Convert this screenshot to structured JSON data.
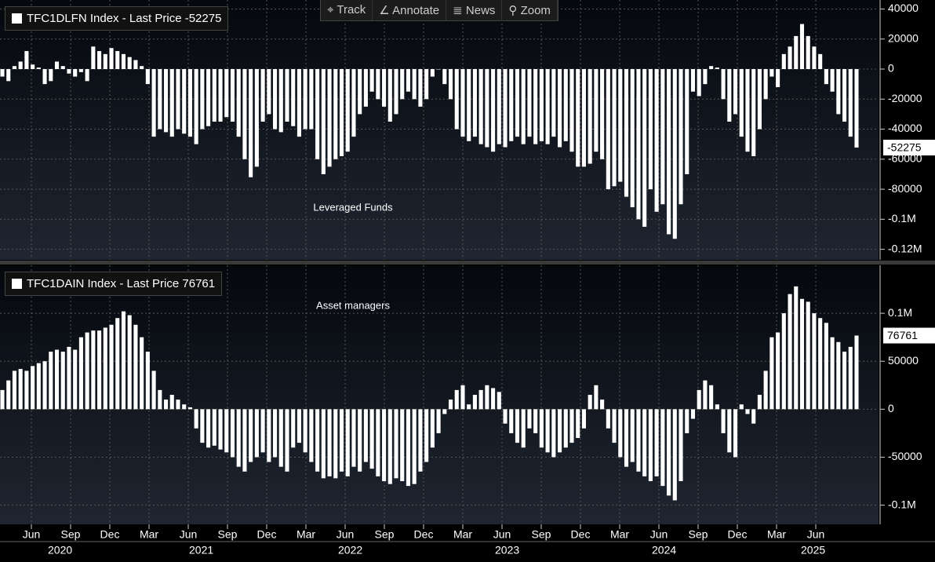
{
  "toolbar": [
    "Track",
    "Annotate",
    "News",
    "Zoom"
  ],
  "chart_data": [
    {
      "type": "bar",
      "title": "TFC1DLFN Index - Last Price -52275",
      "annotation": "Leveraged Funds",
      "color": "#ffffff",
      "ylim": [
        -127000,
        46000
      ],
      "yticks": [
        40000,
        20000,
        0,
        -20000,
        -40000,
        -60000,
        -80000,
        {
          "value": -100000,
          "label": "-0.1M"
        },
        {
          "value": -120000,
          "label": "-0.12M"
        }
      ],
      "grid": true,
      "values": [
        -5000,
        -8000,
        2000,
        5000,
        12000,
        3000,
        1000,
        -10000,
        -8000,
        5000,
        2000,
        -3000,
        -5000,
        -2000,
        -8000,
        15000,
        12000,
        10000,
        14000,
        12000,
        10000,
        8000,
        6000,
        2000,
        -10000,
        -45000,
        -40000,
        -42000,
        -45000,
        -40000,
        -43000,
        -45000,
        -50000,
        -40000,
        -38000,
        -35000,
        -35000,
        -32000,
        -35000,
        -45000,
        -60000,
        -72000,
        -65000,
        -35000,
        -30000,
        -40000,
        -42000,
        -35000,
        -38000,
        -45000,
        -40000,
        -40000,
        -60000,
        -70000,
        -65000,
        -60000,
        -58000,
        -55000,
        -45000,
        -30000,
        -25000,
        -15000,
        -20000,
        -25000,
        -35000,
        -30000,
        -20000,
        -15000,
        -20000,
        -25000,
        -20000,
        -5000,
        0,
        -10000,
        -20000,
        -40000,
        -45000,
        -48000,
        -45000,
        -50000,
        -52000,
        -55000,
        -50000,
        -52000,
        -48000,
        -45000,
        -50000,
        -45000,
        -50000,
        -48000,
        -50000,
        -45000,
        -52000,
        -48000,
        -55000,
        -65000,
        -65000,
        -63000,
        -55000,
        -60000,
        -80000,
        -78000,
        -75000,
        -85000,
        -92000,
        -100000,
        -105000,
        -80000,
        -95000,
        -90000,
        -110000,
        -113000,
        -90000,
        -70000,
        -15000,
        -18000,
        -10000,
        2000,
        1000,
        -20000,
        -35000,
        -30000,
        -45000,
        -55000,
        -58000,
        -40000,
        -20000,
        -5000,
        -12000,
        10000,
        15000,
        22000,
        30000,
        22000,
        15000,
        10000,
        -10000,
        -15000,
        -30000,
        -35000,
        -45000,
        -52275
      ]
    },
    {
      "type": "bar",
      "title": "TFC1DAIN Index - Last Price 76761",
      "annotation": "Asset managers",
      "color": "#ffffff",
      "ylim": [
        -120000,
        150000
      ],
      "yticks": [
        {
          "value": 100000,
          "label": "0.1M"
        },
        50000,
        0,
        -50000,
        {
          "value": -100000,
          "label": "-0.1M"
        }
      ],
      "grid": true,
      "xlim": [
        2020.217,
        2025.817
      ],
      "xticks": [
        {
          "value": 2020.417,
          "label": "Jun"
        },
        {
          "value": 2020.667,
          "label": "Sep"
        },
        {
          "value": 2020.917,
          "label": "Dec"
        },
        {
          "value": 2021.167,
          "label": "Mar"
        },
        {
          "value": 2021.417,
          "label": "Jun"
        },
        {
          "value": 2021.667,
          "label": "Sep"
        },
        {
          "value": 2021.917,
          "label": "Dec"
        },
        {
          "value": 2022.167,
          "label": "Mar"
        },
        {
          "value": 2022.417,
          "label": "Jun"
        },
        {
          "value": 2022.667,
          "label": "Sep"
        },
        {
          "value": 2022.917,
          "label": "Dec"
        },
        {
          "value": 2023.167,
          "label": "Mar"
        },
        {
          "value": 2023.417,
          "label": "Jun"
        },
        {
          "value": 2023.667,
          "label": "Sep"
        },
        {
          "value": 2023.917,
          "label": "Dec"
        },
        {
          "value": 2024.167,
          "label": "Mar"
        },
        {
          "value": 2024.417,
          "label": "Jun"
        },
        {
          "value": 2024.667,
          "label": "Sep"
        },
        {
          "value": 2024.917,
          "label": "Dec"
        },
        {
          "value": 2025.167,
          "label": "Mar"
        },
        {
          "value": 2025.417,
          "label": "Jun"
        }
      ],
      "year_ticks": [
        {
          "value": 2020.6,
          "label": "2020"
        },
        {
          "value": 2021.5,
          "label": "2021"
        },
        {
          "value": 2022.45,
          "label": "2022"
        },
        {
          "value": 2023.45,
          "label": "2023"
        },
        {
          "value": 2024.45,
          "label": "2024"
        },
        {
          "value": 2025.4,
          "label": "2025"
        }
      ],
      "values": [
        20000,
        30000,
        40000,
        42000,
        40000,
        45000,
        48000,
        50000,
        60000,
        62000,
        60000,
        65000,
        62000,
        75000,
        80000,
        82000,
        82000,
        85000,
        88000,
        95000,
        102000,
        98000,
        88000,
        75000,
        60000,
        40000,
        20000,
        10000,
        15000,
        10000,
        5000,
        2000,
        -20000,
        -35000,
        -40000,
        -38000,
        -42000,
        -45000,
        -50000,
        -60000,
        -65000,
        -55000,
        -50000,
        -45000,
        -55000,
        -50000,
        -60000,
        -65000,
        -40000,
        -35000,
        -45000,
        -55000,
        -65000,
        -72000,
        -70000,
        -72000,
        -65000,
        -70000,
        -60000,
        -65000,
        -55000,
        -62000,
        -70000,
        -75000,
        -78000,
        -72000,
        -75000,
        -80000,
        -78000,
        -65000,
        -55000,
        -40000,
        -25000,
        -5000,
        10000,
        20000,
        25000,
        5000,
        15000,
        20000,
        25000,
        22000,
        18000,
        -15000,
        -25000,
        -35000,
        -40000,
        -20000,
        -25000,
        -40000,
        -45000,
        -50000,
        -45000,
        -40000,
        -35000,
        -30000,
        -20000,
        15000,
        25000,
        10000,
        -20000,
        -35000,
        -50000,
        -60000,
        -55000,
        -65000,
        -70000,
        -75000,
        -70000,
        -80000,
        -90000,
        -95000,
        -75000,
        -25000,
        -10000,
        20000,
        30000,
        25000,
        5000,
        -25000,
        -45000,
        -50000,
        5000,
        -5000,
        -15000,
        15000,
        40000,
        75000,
        80000,
        100000,
        120000,
        128000,
        115000,
        112000,
        100000,
        95000,
        90000,
        75000,
        70000,
        60000,
        65000,
        76761
      ]
    }
  ]
}
